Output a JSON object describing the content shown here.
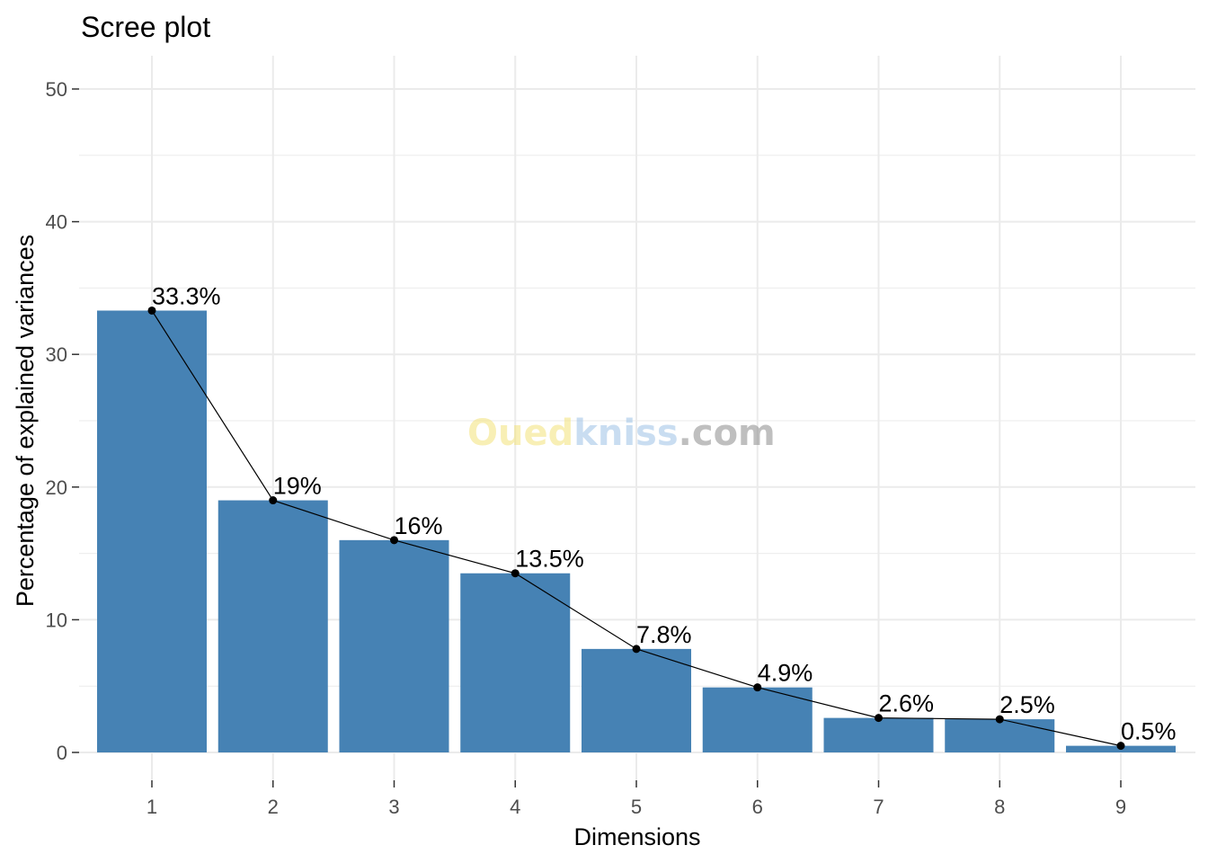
{
  "watermark": {
    "part1": "Ouedkniss",
    "part1_a": "Oued",
    "part1_b": "kniss",
    "part2": ".com"
  },
  "colors": {
    "bar": "#4682B4",
    "grid": "#EBEBEB",
    "line": "#000000",
    "watermark_yellow": "#F3E27A",
    "watermark_blue": "#9EC3E6",
    "watermark_gray": "#8C8C8C"
  },
  "chart_data": {
    "type": "bar",
    "title": "Scree plot",
    "xlabel": "Dimensions",
    "ylabel": "Percentage of explained variances",
    "categories": [
      "1",
      "2",
      "3",
      "4",
      "5",
      "6",
      "7",
      "8",
      "9"
    ],
    "values": [
      33.3,
      19,
      16,
      13.5,
      7.8,
      4.9,
      2.6,
      2.5,
      0.5
    ],
    "data_labels": [
      "33.3%",
      "19%",
      "16%",
      "13.5%",
      "7.8%",
      "4.9%",
      "2.6%",
      "2.5%",
      "0.5%"
    ],
    "ylim": [
      0,
      50
    ],
    "yticks": [
      "0",
      "10",
      "20",
      "30",
      "40",
      "50"
    ],
    "ytick_values": [
      0,
      10,
      20,
      30,
      40,
      50
    ],
    "overlay": "line-with-points",
    "grid": true,
    "legend": "none"
  }
}
